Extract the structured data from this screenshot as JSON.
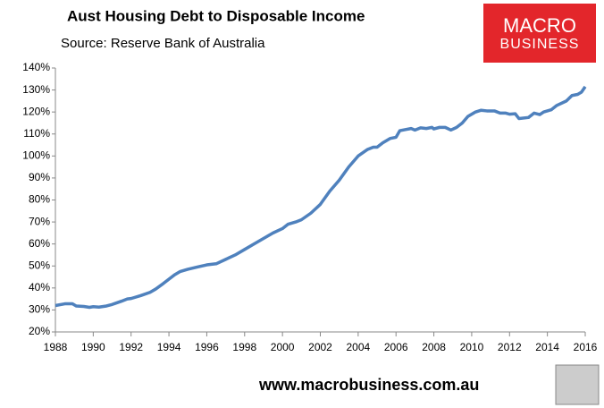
{
  "chart_data": {
    "type": "line",
    "title": "Aust Housing Debt to Disposable Income",
    "subtitle": "Source: Reserve Bank of Australia",
    "annotations": [
      "MACRO",
      "BUSINESS",
      "www.macrobusiness.com.au"
    ],
    "x": [
      1988.0,
      1988.5,
      1988.9,
      1989.1,
      1989.5,
      1989.8,
      1990.0,
      1990.3,
      1990.7,
      1991.0,
      1991.5,
      1991.8,
      1992.0,
      1992.5,
      1993.0,
      1993.3,
      1993.7,
      1994.0,
      1994.3,
      1994.6,
      1995.0,
      1995.5,
      1996.0,
      1996.5,
      1997.0,
      1997.5,
      1998.0,
      1998.5,
      1999.0,
      1999.5,
      2000.0,
      2000.3,
      2000.7,
      2001.0,
      2001.5,
      2002.0,
      2002.5,
      2003.0,
      2003.5,
      2004.0,
      2004.5,
      2004.8,
      2005.0,
      2005.3,
      2005.7,
      2006.0,
      2006.2,
      2006.5,
      2006.8,
      2007.0,
      2007.3,
      2007.6,
      2007.9,
      2008.0,
      2008.3,
      2008.6,
      2008.9,
      2009.2,
      2009.5,
      2009.8,
      2010.2,
      2010.5,
      2010.8,
      2011.2,
      2011.5,
      2011.8,
      2012.0,
      2012.3,
      2012.5,
      2013.0,
      2013.3,
      2013.6,
      2013.8,
      2014.2,
      2014.5,
      2015.0,
      2015.3,
      2015.6,
      2015.8,
      2016.0
    ],
    "series": [
      {
        "color": "#4f81bd",
        "values": [
          32,
          32.8,
          32.8,
          31.8,
          31.6,
          31.2,
          31.5,
          31.3,
          31.8,
          32.5,
          34,
          35,
          35.2,
          36.5,
          38,
          39.5,
          42,
          44,
          46,
          47.5,
          48.5,
          49.5,
          50.5,
          51,
          53,
          55,
          57.5,
          60,
          62.5,
          65,
          67,
          69,
          70,
          71,
          74,
          78,
          84,
          89,
          95,
          100,
          103,
          104,
          104,
          106,
          108,
          108.5,
          111.5,
          112,
          112.5,
          111.8,
          112.8,
          112.5,
          113,
          112.3,
          113,
          113,
          111.8,
          113,
          115,
          118,
          120,
          120.8,
          120.5,
          120.5,
          119.5,
          119.5,
          119,
          119.2,
          117,
          117.5,
          119.5,
          118.8,
          120,
          121,
          123,
          125,
          127.5,
          128,
          129,
          131.5
        ]
      }
    ],
    "xlim": [
      1988,
      2016
    ],
    "xticks": [
      1988,
      1990,
      1992,
      1994,
      1996,
      1998,
      2000,
      2002,
      2004,
      2006,
      2008,
      2010,
      2012,
      2014,
      2016
    ],
    "ylim": [
      20,
      140
    ],
    "yticks": [
      {
        "value": 20,
        "label": "20%"
      },
      {
        "value": 30,
        "label": "30%"
      },
      {
        "value": 40,
        "label": "40%"
      },
      {
        "value": 50,
        "label": "50%"
      },
      {
        "value": 60,
        "label": "60%"
      },
      {
        "value": 70,
        "label": "70%"
      },
      {
        "value": 80,
        "label": "80%"
      },
      {
        "value": 90,
        "label": "90%"
      },
      {
        "value": 100,
        "label": "100%"
      },
      {
        "value": 110,
        "label": "110%"
      },
      {
        "value": 120,
        "label": "120%"
      },
      {
        "value": 130,
        "label": "130%"
      },
      {
        "value": 140,
        "label": "140%"
      }
    ],
    "grid": false
  }
}
